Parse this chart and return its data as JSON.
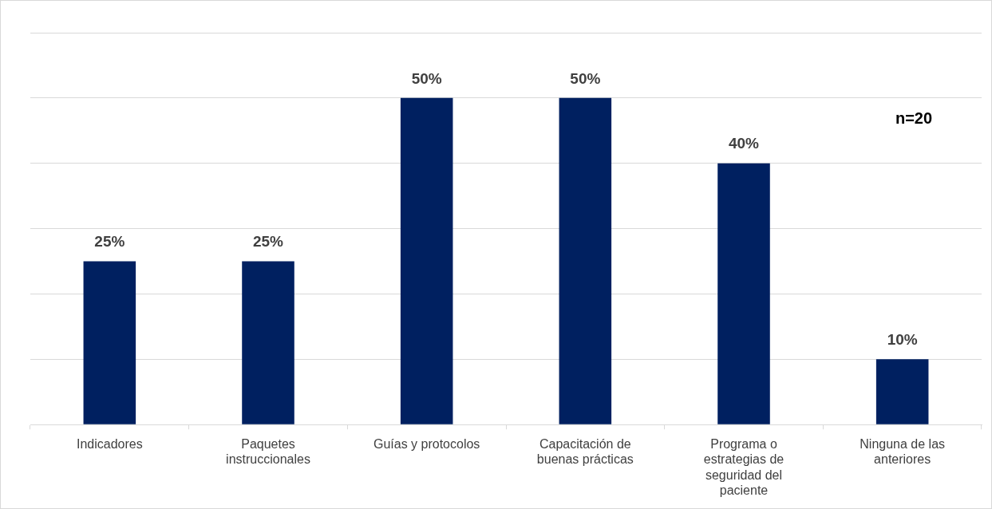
{
  "chart_data": {
    "type": "bar",
    "categories": [
      "Indicadores",
      "Paquetes instruccionales",
      "Guías y protocolos",
      "Capacitación de buenas prácticas",
      "Programa o estrategias de seguridad del paciente",
      "Ninguna de las anteriores"
    ],
    "values": [
      25,
      25,
      50,
      50,
      40,
      10
    ],
    "value_labels": [
      "25%",
      "25%",
      "50%",
      "50%",
      "40%",
      "10%"
    ],
    "color": "#002060",
    "ylim": [
      0,
      60
    ],
    "yticks": [
      {
        "value": 0,
        "label": null
      },
      {
        "value": 10,
        "label": null
      },
      {
        "value": 20,
        "label": null
      },
      {
        "value": 30,
        "label": null
      },
      {
        "value": 40,
        "label": null
      },
      {
        "value": 50,
        "label": null
      },
      {
        "value": 60,
        "label": null
      }
    ],
    "tick_labels": "x",
    "grid": "y",
    "legend": false,
    "annotations": [
      "n=20"
    ]
  }
}
